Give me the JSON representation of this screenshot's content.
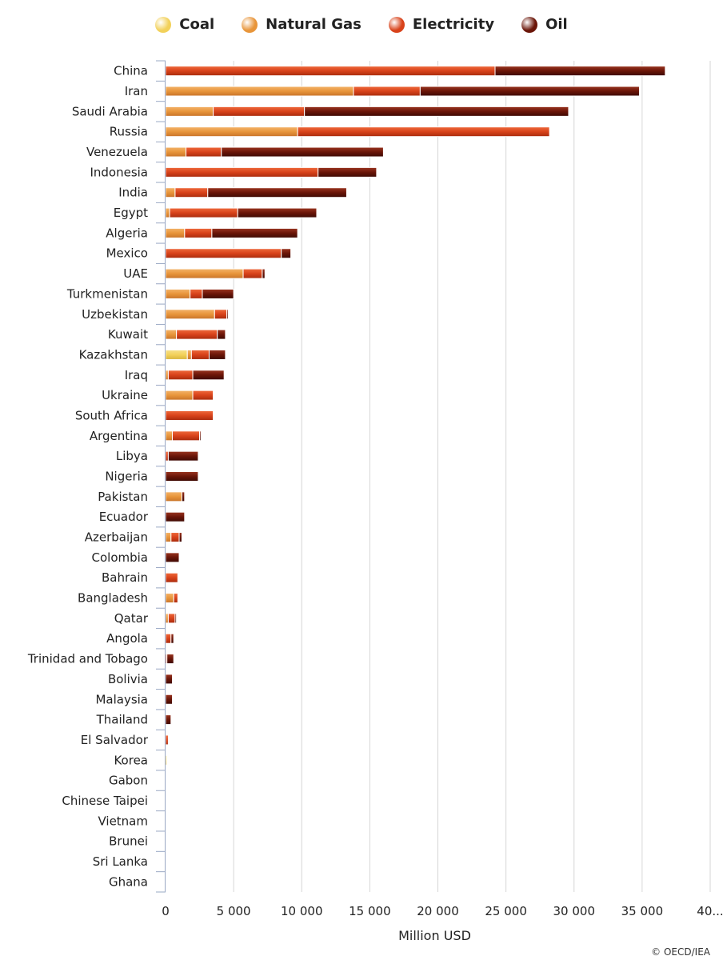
{
  "chart_data": {
    "type": "bar",
    "orientation": "horizontal",
    "stacked": true,
    "xlabel": "Million USD",
    "xlim": [
      0,
      40000
    ],
    "xticks": [
      "0",
      "5 000",
      "10 000",
      "15 000",
      "20 000",
      "25 000",
      "30 000",
      "35 000",
      "40..."
    ],
    "grid": true,
    "legend_position": "top",
    "categories": [
      "China",
      "Iran",
      "Saudi Arabia",
      "Russia",
      "Venezuela",
      "Indonesia",
      "India",
      "Egypt",
      "Algeria",
      "Mexico",
      "UAE",
      "Turkmenistan",
      "Uzbekistan",
      "Kuwait",
      "Kazakhstan",
      "Iraq",
      "Ukraine",
      "South Africa",
      "Argentina",
      "Libya",
      "Nigeria",
      "Pakistan",
      "Ecuador",
      "Azerbaijan",
      "Colombia",
      "Bahrain",
      "Bangladesh",
      "Qatar",
      "Angola",
      "Trinidad and Tobago",
      "Bolivia",
      "Malaysia",
      "Thailand",
      "El Salvador",
      "Korea",
      "Gabon",
      "Chinese Taipei",
      "Vietnam",
      "Brunei",
      "Sri Lanka",
      "Ghana"
    ],
    "series": [
      {
        "name": "Coal",
        "color": "#f2d15a",
        "values": [
          0,
          0,
          0,
          0,
          0,
          0,
          0,
          0,
          0,
          0,
          0,
          0,
          0,
          0,
          1600,
          0,
          0,
          0,
          0,
          0,
          0,
          0,
          0,
          0,
          0,
          0,
          0,
          0,
          0,
          0,
          0,
          0,
          0,
          0,
          100,
          0,
          0,
          0,
          0,
          0,
          0
        ]
      },
      {
        "name": "Natural Gas",
        "color": "#e8953a",
        "values": [
          0,
          13800,
          3500,
          9700,
          1500,
          0,
          700,
          300,
          1400,
          0,
          5700,
          1800,
          3600,
          800,
          300,
          200,
          2000,
          0,
          500,
          0,
          0,
          1200,
          0,
          400,
          0,
          0,
          600,
          200,
          0,
          0,
          0,
          0,
          0,
          0,
          0,
          0,
          0,
          0,
          0,
          0,
          0
        ]
      },
      {
        "name": "Electricity",
        "color": "#d8421a",
        "values": [
          24200,
          4900,
          6700,
          18500,
          2600,
          11200,
          2400,
          5000,
          2000,
          8500,
          1400,
          900,
          900,
          3000,
          1300,
          1800,
          1500,
          3500,
          2000,
          200,
          0,
          0,
          0,
          600,
          0,
          900,
          300,
          500,
          400,
          100,
          0,
          0,
          0,
          200,
          0,
          0,
          0,
          0,
          0,
          0,
          0
        ]
      },
      {
        "name": "Oil",
        "color": "#6a1508",
        "values": [
          12500,
          16100,
          19400,
          0,
          11900,
          4300,
          10200,
          5800,
          6300,
          700,
          200,
          2300,
          100,
          600,
          1200,
          2300,
          0,
          0,
          100,
          2200,
          2400,
          200,
          1400,
          200,
          1000,
          0,
          0,
          100,
          200,
          500,
          500,
          500,
          400,
          0,
          0,
          0,
          0,
          0,
          0,
          0,
          0
        ]
      }
    ]
  },
  "credit": "© OECD/IEA"
}
